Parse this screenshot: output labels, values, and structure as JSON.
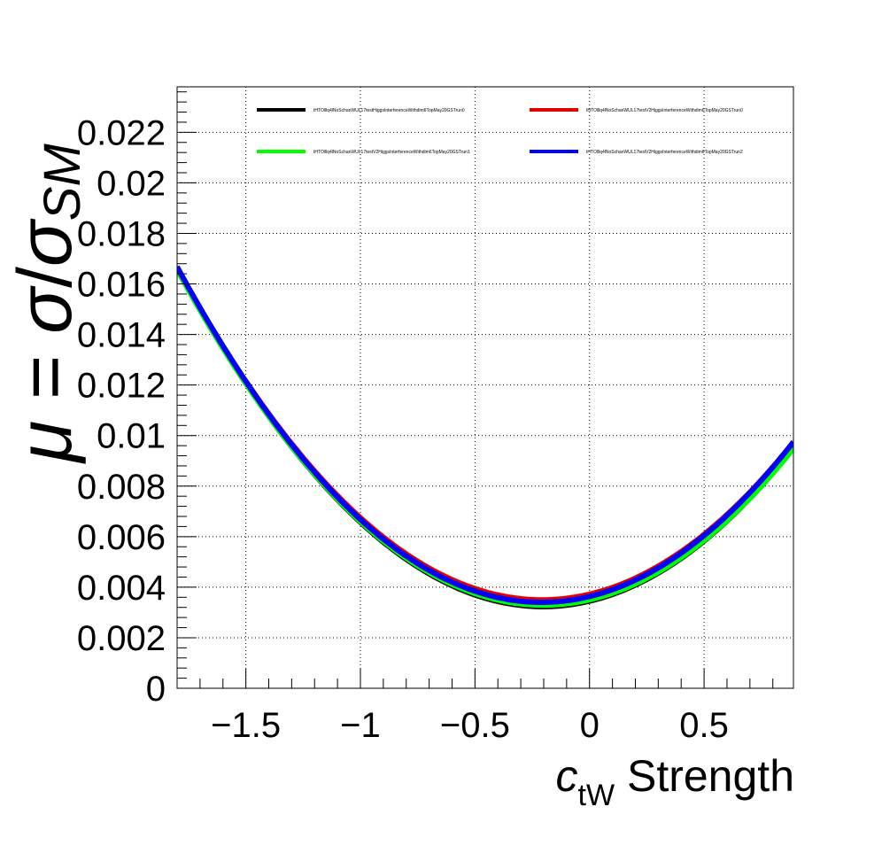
{
  "chart_data": {
    "type": "line",
    "xlabel": {
      "main": "c",
      "sub": "tW",
      "rest": " Strength"
    },
    "ylabel": {
      "mu": "μ",
      "eq": " = ",
      "sigma1": "σ",
      "slash": "/",
      "sigma2": "σ",
      "sub": "SM"
    },
    "xlim": [
      -1.8,
      0.89
    ],
    "ylim": [
      0,
      0.0238
    ],
    "x_ticks": [
      -1.5,
      -1,
      -0.5,
      0,
      0.5
    ],
    "x_tick_labels": [
      "−1.5",
      "−1",
      "−0.5",
      "0",
      "0.5"
    ],
    "y_ticks": [
      0,
      0.002,
      0.004,
      0.006,
      0.008,
      0.01,
      0.012,
      0.014,
      0.016,
      0.018,
      0.02,
      0.022
    ],
    "y_tick_labels": [
      "0",
      "0.002",
      "0.004",
      "0.006",
      "0.008",
      "0.01",
      "0.012",
      "0.014",
      "0.016",
      "0.018",
      "0.02",
      "0.022"
    ],
    "grid": true,
    "legend_position": "top",
    "series": [
      {
        "name": "tHTOlllq4lNoSchanWUL17testHiggsInterferenceWithdim6TopMay20GSTrun0",
        "color": "#000000",
        "quadratic": {
          "a": 0.00525,
          "b": 0.00213,
          "c": 0.00345
        }
      },
      {
        "name": "tHTOlllq4lNoSchanWUL17testV2HiggsInterferenceWithdim6TopMay20GSTrun0",
        "color": "#e00000",
        "quadratic": {
          "a": 0.00518,
          "b": 0.00215,
          "c": 0.00372
        }
      },
      {
        "name": "tHTOlllq4lNoSchanWUL17testV2HiggsInterferenceWithdim6TopMay20GSTrun1",
        "color": "#00ff00",
        "quadratic": {
          "a": 0.0052,
          "b": 0.0021,
          "c": 0.0035
        }
      },
      {
        "name": "tHTOlllq4lNoSchanWUL17testV2HiggsInterferenceWithdim6TopMay20GSTrun2",
        "color": "#0000ff",
        "quadratic": {
          "a": 0.00525,
          "b": 0.0022,
          "c": 0.00363
        }
      }
    ]
  }
}
